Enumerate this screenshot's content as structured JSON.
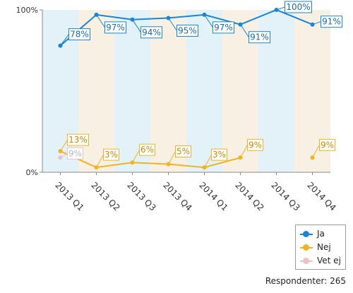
{
  "chart_data": {
    "type": "line",
    "categories": [
      "2013 Q1",
      "2013 Q2",
      "2013 Q3",
      "2013 Q4",
      "2014 Q1",
      "2014 Q2",
      "2014 Q3",
      "2014 Q4"
    ],
    "ylim": [
      0,
      100
    ],
    "yticks": [
      "0%",
      "100%"
    ],
    "series": [
      {
        "name": "Ja",
        "color": "#1a85d6",
        "values": [
          78,
          97,
          94,
          95,
          97,
          91,
          100,
          91
        ],
        "labels": [
          "78%",
          "97%",
          "94%",
          "95%",
          "97%",
          "91%",
          "100%",
          "91%"
        ]
      },
      {
        "name": "Nej",
        "color": "#f0b323",
        "values": [
          13,
          3,
          6,
          5,
          3,
          9,
          null,
          9
        ],
        "labels": [
          "13%",
          "3%",
          "6%",
          "5%",
          "3%",
          "9%",
          null,
          "9%"
        ]
      },
      {
        "name": "Vet ej",
        "color": "#e8c4c4",
        "values": [
          9,
          null,
          null,
          null,
          null,
          null,
          null,
          null
        ],
        "labels": [
          "9%",
          null,
          null,
          null,
          null,
          null,
          null,
          null
        ]
      }
    ],
    "band_colors": [
      "#e3f1f9",
      "#f8f0e3"
    ],
    "respondents": "Respondenter: 265"
  }
}
